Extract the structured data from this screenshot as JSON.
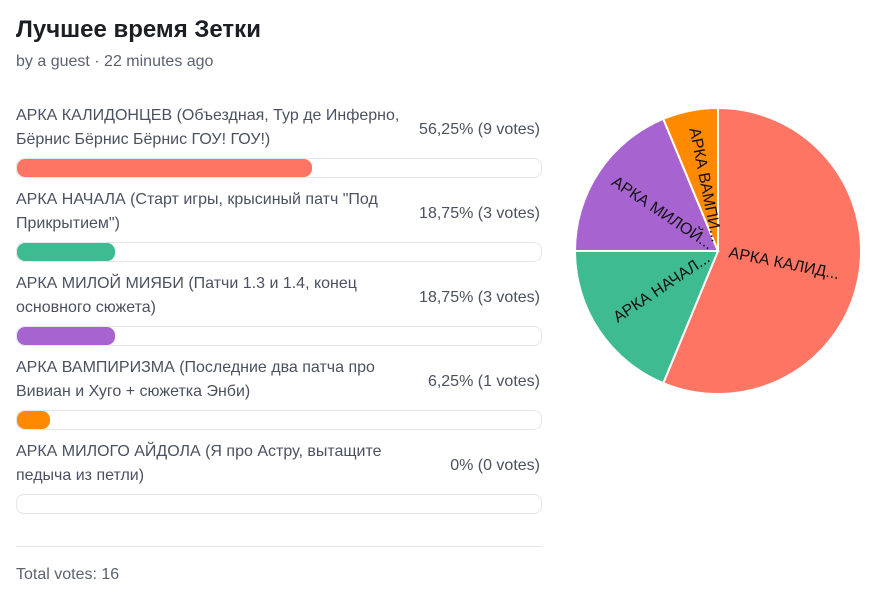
{
  "poll": {
    "title": "Лучшее время Зетки",
    "byline": "by a guest · 22 minutes ago",
    "total_votes_text": "Total votes: 16"
  },
  "options": [
    {
      "label": "АРКА КАЛИДОНЦЕВ (Объездная, Тур де Инферно, Бёрнис Бёрнис Бёрнис ГОУ! ГОУ!)",
      "pct_text": "56,25% (9 votes)",
      "fraction": 0.5625,
      "color": "#ff7564"
    },
    {
      "label": "АРКА НАЧАЛА (Старт игры, крысиный патч \"Под Прикрытием\")",
      "pct_text": "18,75% (3 votes)",
      "fraction": 0.1875,
      "color": "#3fbb91"
    },
    {
      "label": "АРКА МИЛОЙ МИЯБИ (Патчи 1.3 и 1.4, конец основного сюжета)",
      "pct_text": "18,75% (3 votes)",
      "fraction": 0.1875,
      "color": "#a764d0"
    },
    {
      "label": "АРКА ВАМПИРИЗМА (Последние два патча про Вивиан и Хуго + сюжетка Энби)",
      "pct_text": "6,25% (1 votes)",
      "fraction": 0.0625,
      "color": "#ff8a00"
    },
    {
      "label": "АРКА МИЛОГО АЙДОЛА (Я про Астру, вытащите педыча из петли)",
      "pct_text": "0% (0 votes)",
      "fraction": 0,
      "color": "#b0b5bd"
    }
  ],
  "chart_data": {
    "type": "pie",
    "slices": [
      {
        "label": "АРКА КАЛИД...",
        "value": 9,
        "color": "#ff7564"
      },
      {
        "label": "АРКА НАЧАЛ...",
        "value": 3,
        "color": "#3fbb91"
      },
      {
        "label": "АРКА МИЛОЙ...",
        "value": 3,
        "color": "#a764d0"
      },
      {
        "label": "АРКА ВАМПИ...",
        "value": 1,
        "color": "#ff8a00"
      }
    ]
  }
}
